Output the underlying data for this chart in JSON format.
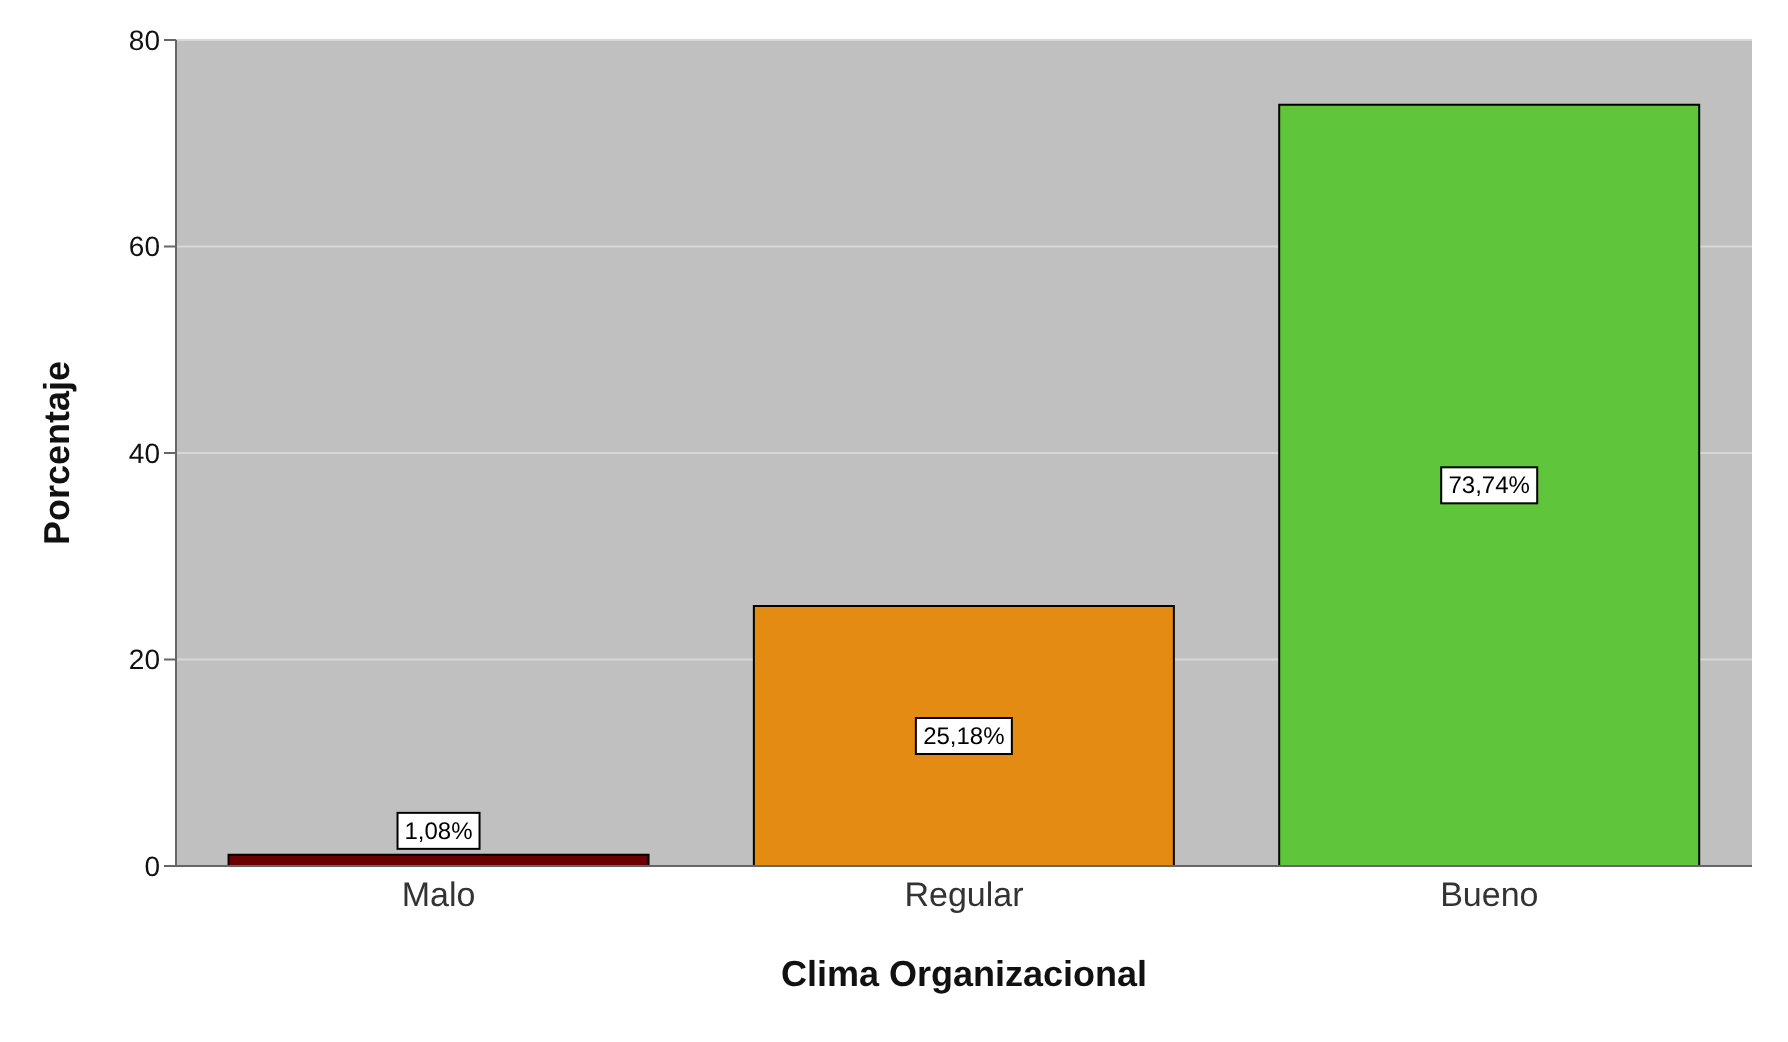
{
  "chart_data": {
    "type": "bar",
    "xlabel": "Clima Organizacional",
    "ylabel": "Porcentaje",
    "categories": [
      "Malo",
      "Regular",
      "Bueno"
    ],
    "values": [
      1.08,
      25.18,
      73.74
    ],
    "colors": [
      "#6b0000",
      "#e38b12",
      "#5fc53a"
    ],
    "value_labels": [
      "1,08%",
      "25,18%",
      "73,74%"
    ],
    "ylim": [
      0,
      80
    ],
    "yticks": [
      0,
      20,
      40,
      60,
      80
    ],
    "grid": "y"
  }
}
